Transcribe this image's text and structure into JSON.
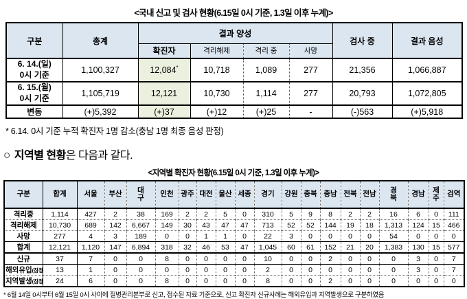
{
  "colors": {
    "header_bg": "#dce6f1",
    "highlight_bg": "#ebf1de",
    "border": "#000000"
  },
  "table1": {
    "title": "<국내 신고 및 검사 현황(6.15일 0시 기준, 1.3일 이후 누계)>",
    "col_gubun": "구분",
    "col_total": "총계",
    "col_positive": "결과 양성",
    "col_confirmed": "확진자",
    "col_released": "격리해제",
    "col_isolated": "격리 중",
    "col_deceased": "사망",
    "col_testing": "검사 중",
    "col_negative": "결과 음성",
    "rows": [
      {
        "label": "6. 14.(일)\n0시 기준",
        "total": "1,100,327",
        "confirmed": "12,084",
        "confirmed_sup": "*",
        "released": "10,718",
        "isolated": "1,089",
        "deceased": "277",
        "testing": "21,356",
        "negative": "1,066,887"
      },
      {
        "label": "6. 15.(월)\n0시 기준",
        "total": "1,105,719",
        "confirmed": "12,121",
        "confirmed_sup": "",
        "released": "10,730",
        "isolated": "1,114",
        "deceased": "277",
        "testing": "20,793",
        "negative": "1,072,805"
      },
      {
        "label": "변동",
        "total": "(+)5,392",
        "confirmed": "(+)37",
        "confirmed_sup": "",
        "released": "(+)12",
        "isolated": "(+)25",
        "deceased": "-",
        "testing": "(-)563",
        "negative": "(+)5,918"
      }
    ],
    "footnote": "* 6.14. 0시 기준 누적 확진자 1명 감소(충남 1명 최종 음성 판정)"
  },
  "section": {
    "bullet": "○",
    "heading_strong": "지역별 현황",
    "heading_rest": "은 다음과 같다."
  },
  "table2": {
    "title": "<지역별 확진자 현황(6.15일 0시 기준, 1.3일 이후 누계)>",
    "columns": [
      "구분",
      "합계",
      "서울",
      "부산",
      "대\n구",
      "인천",
      "광주",
      "대전",
      "울산",
      "세종",
      "경기",
      "강원",
      "충북",
      "충남",
      "전북",
      "전남",
      "경\n북",
      "경남",
      "제\n주",
      "검역"
    ],
    "rows": [
      {
        "label": "격리중",
        "suffix": "",
        "values": [
          "1,114",
          "427",
          "2",
          "38",
          "169",
          "2",
          "2",
          "5",
          "0",
          "310",
          "5",
          "9",
          "8",
          "2",
          "2",
          "16",
          "6",
          "0",
          "111"
        ]
      },
      {
        "label": "격리해제",
        "suffix": "",
        "values": [
          "10,730",
          "689",
          "142",
          "6,667",
          "149",
          "30",
          "43",
          "47",
          "47",
          "713",
          "52",
          "52",
          "144",
          "19",
          "18",
          "1,313",
          "124",
          "15",
          "466"
        ]
      },
      {
        "label": "사망",
        "suffix": "",
        "values": [
          "277",
          "4",
          "3",
          "189",
          "0",
          "0",
          "1",
          "1",
          "0",
          "22",
          "3",
          "0",
          "0",
          "0",
          "0",
          "54",
          "0",
          "0",
          "0"
        ]
      },
      {
        "label": "합계",
        "suffix": "",
        "values": [
          "12,121",
          "1,120",
          "147",
          "6,894",
          "318",
          "32",
          "46",
          "53",
          "47",
          "1,045",
          "60",
          "61",
          "152",
          "21",
          "20",
          "1,383",
          "130",
          "15",
          "577"
        ]
      },
      {
        "label": "신규",
        "suffix": "",
        "values": [
          "37",
          "7",
          "0",
          "0",
          "8",
          "0",
          "0",
          "0",
          "0",
          "10",
          "0",
          "0",
          "2",
          "0",
          "0",
          "0",
          "3",
          "0",
          "7"
        ]
      },
      {
        "label": "해외유입",
        "suffix": "(잠정)",
        "values": [
          "13",
          "1",
          "0",
          "0",
          "0",
          "0",
          "0",
          "0",
          "0",
          "2",
          "0",
          "0",
          "0",
          "0",
          "0",
          "0",
          "3",
          "0",
          "7"
        ]
      },
      {
        "label": "지역발생",
        "suffix": "(잠정)",
        "values": [
          "24",
          "6",
          "0",
          "0",
          "8",
          "0",
          "0",
          "0",
          "0",
          "8",
          "0",
          "0",
          "2",
          "0",
          "0",
          "0",
          "0",
          "0",
          "0"
        ]
      }
    ],
    "footnote": "* 6월 14일 0시부터 6월 15일 0시 사이에 질병관리본부로 신고, 접수된 자료 기준으로, 신고 확진자 신규사례는 해외유입과 지역발생으로 구분하였음"
  }
}
